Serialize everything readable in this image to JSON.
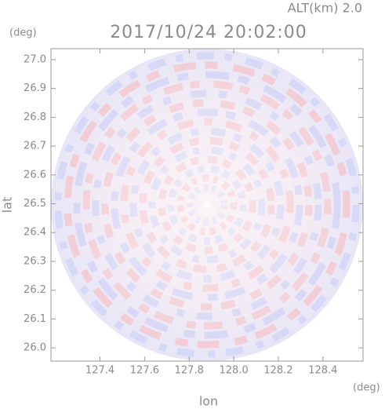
{
  "chart_data": {
    "type": "ppi",
    "title": "2017/10/24 20:02:00",
    "subtitle": "ALT(km)  2.0",
    "x_label": "lon",
    "y_label": "lat",
    "x_unit": "(deg)",
    "y_unit": "(deg)",
    "xlim": [
      127.18,
      128.58
    ],
    "ylim": [
      25.954,
      27.038
    ],
    "xticks": [
      127.4,
      127.6,
      127.8,
      {
        "value": 128.0,
        "label": "128.0"
      },
      128.2,
      128.4
    ],
    "yticks": [
      {
        "value": 26.0,
        "label": "26.0"
      },
      26.1,
      26.2,
      26.3,
      26.4,
      26.5,
      26.6,
      26.7,
      26.8,
      26.9,
      {
        "value": 27.0,
        "label": "27.0"
      }
    ]
  }
}
